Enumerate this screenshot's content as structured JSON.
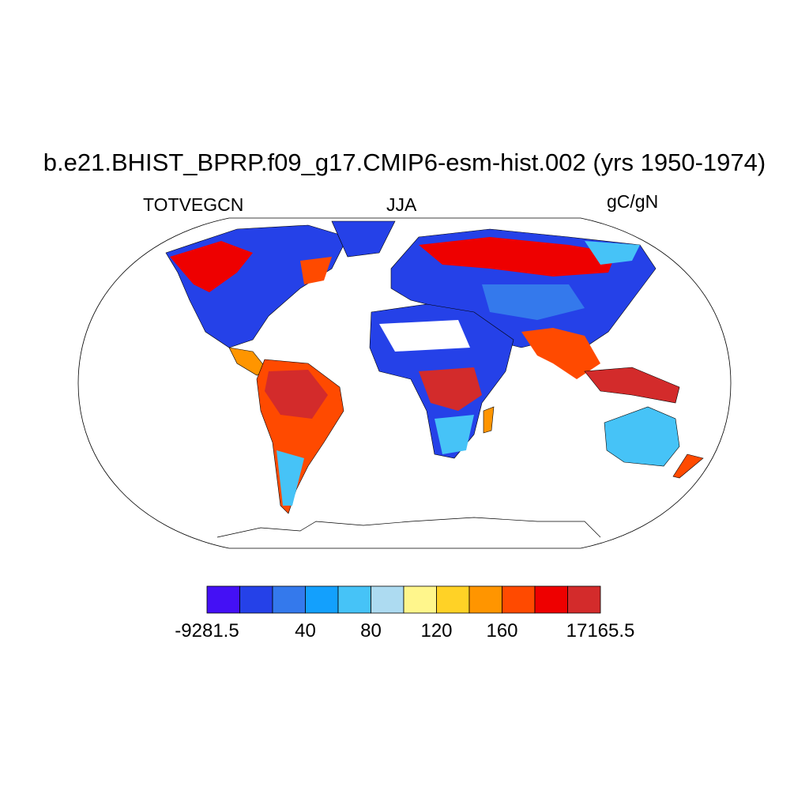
{
  "title": "b.e21.BHIST_BPRP.f09_g17.CMIP6-esm-hist.002 (yrs 1950-1974)",
  "left_string": "TOTVEGCN",
  "center_string": "JJA",
  "right_string": "gC/gN",
  "map": {
    "projection": "Robinson",
    "field": "TOTVEGCN",
    "missing_color": "#FFFFFF",
    "coastline_color": "#000000"
  },
  "colorbar": {
    "colors": [
      "#4410F5",
      "#2541E8",
      "#3479EC",
      "#13A0FD",
      "#46C3F7",
      "#ADDBF1",
      "#FFF68C",
      "#FFD226",
      "#FF9500",
      "#FF4A00",
      "#EE0000",
      "#D32B2B"
    ],
    "labels": [
      {
        "text": "-9281.5",
        "boundary": 0
      },
      {
        "text": "40",
        "boundary": 3
      },
      {
        "text": "80",
        "boundary": 5
      },
      {
        "text": "120",
        "boundary": 7
      },
      {
        "text": "160",
        "boundary": 9
      },
      {
        "text": "17165.5",
        "boundary": 12
      }
    ]
  }
}
